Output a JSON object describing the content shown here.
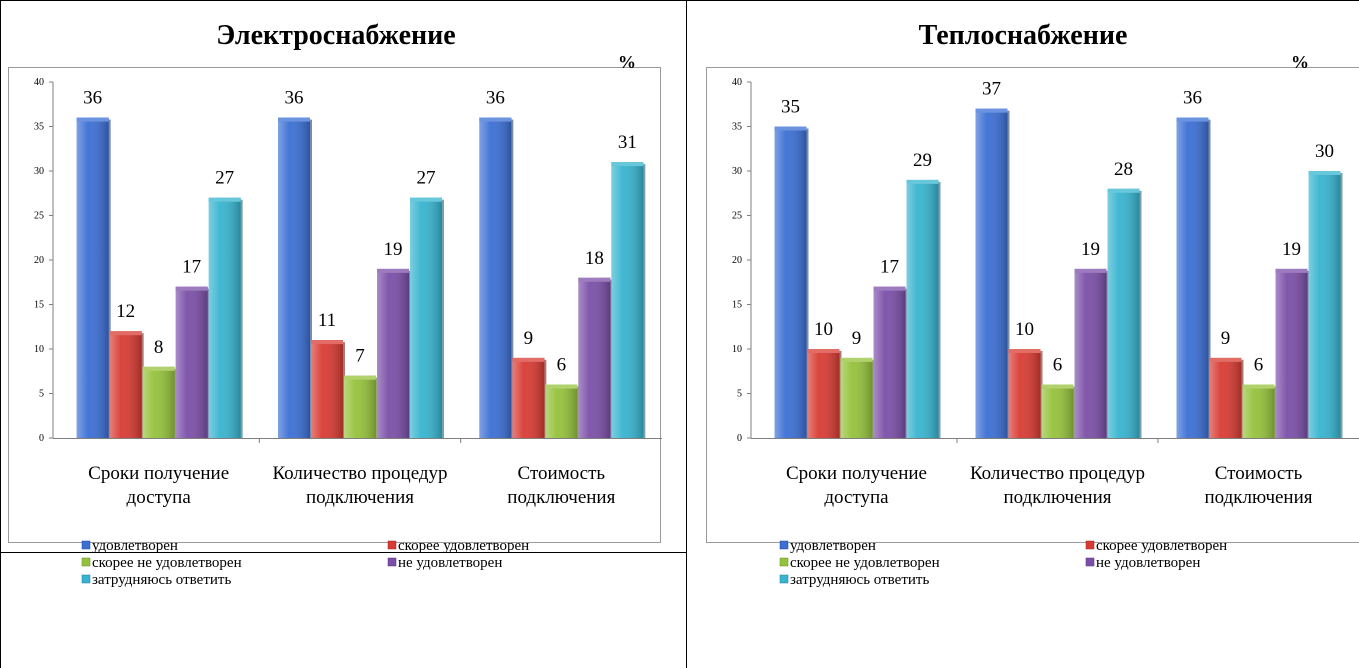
{
  "chart_data": [
    {
      "type": "bar",
      "title": "Электроснабжение",
      "unit": "%",
      "ylim": [
        0,
        40
      ],
      "yticks": [
        0,
        5,
        10,
        15,
        20,
        25,
        30,
        35,
        40
      ],
      "categories": [
        [
          "Сроки получение",
          "доступа"
        ],
        [
          "Количество процедур",
          "подключения"
        ],
        [
          "Стоимость",
          "подключения"
        ]
      ],
      "series": [
        {
          "name": "удовлетворен",
          "color": "#3b6fd4",
          "values": [
            36,
            36,
            36
          ]
        },
        {
          "name": "скорее удовлетворен",
          "color": "#d83b33",
          "values": [
            12,
            11,
            9
          ]
        },
        {
          "name": "скорее не удовлетворен",
          "color": "#95c23b",
          "values": [
            8,
            7,
            6
          ]
        },
        {
          "name": "не удовлетворен",
          "color": "#7b4fa8",
          "values": [
            17,
            19,
            18
          ]
        },
        {
          "name": "затрудняюсь ответить",
          "color": "#37b4cf",
          "values": [
            27,
            27,
            31
          ]
        }
      ],
      "legend_position": "bottom",
      "grid": false
    },
    {
      "type": "bar",
      "title": "Теплоснабжение",
      "unit": "%",
      "ylim": [
        0,
        40
      ],
      "yticks": [
        0,
        5,
        10,
        15,
        20,
        25,
        30,
        35,
        40
      ],
      "categories": [
        [
          "Сроки получение",
          "доступа"
        ],
        [
          "Количество процедур",
          "подключения"
        ],
        [
          "Стоимость",
          "подключения"
        ]
      ],
      "series": [
        {
          "name": "удовлетворен",
          "color": "#3b6fd4",
          "values": [
            35,
            37,
            36
          ]
        },
        {
          "name": "скорее удовлетворен",
          "color": "#d83b33",
          "values": [
            10,
            10,
            9
          ]
        },
        {
          "name": "скорее не удовлетворен",
          "color": "#95c23b",
          "values": [
            9,
            6,
            6
          ]
        },
        {
          "name": "не удовлетворен",
          "color": "#7b4fa8",
          "values": [
            17,
            19,
            19
          ]
        },
        {
          "name": "затрудняюсь ответить",
          "color": "#37b4cf",
          "values": [
            29,
            28,
            30
          ]
        }
      ],
      "legend_position": "bottom",
      "grid": false
    }
  ]
}
